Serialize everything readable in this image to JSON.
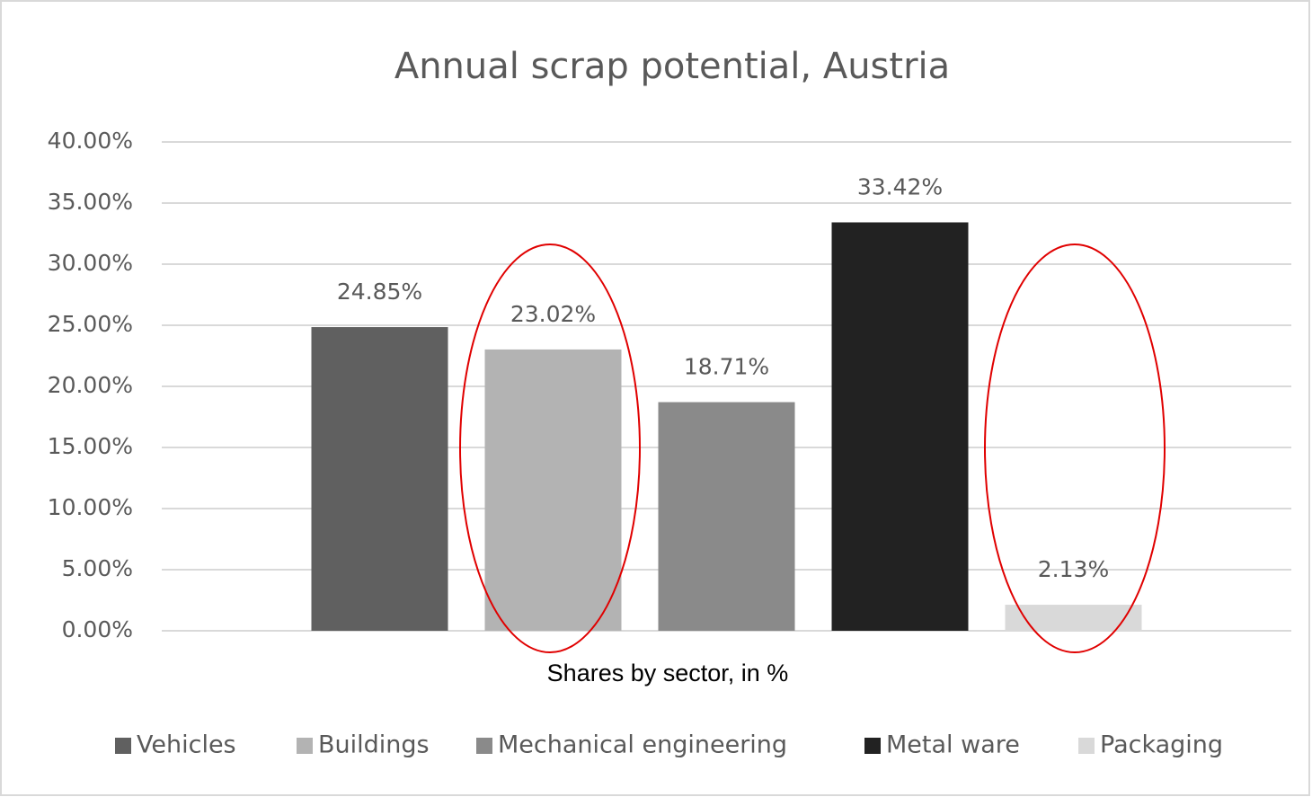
{
  "chart_data": {
    "type": "bar",
    "title": "Annual scrap potential, Austria",
    "x_label": "Shares by sector, in %",
    "series": [
      {
        "name": "Vehicles",
        "color": "#606060",
        "values": [
          24.85
        ],
        "value_labels": [
          "24.85%"
        ]
      },
      {
        "name": "Buildings",
        "color": "#b3b3b3",
        "values": [
          23.02
        ],
        "value_labels": [
          "23.02%"
        ]
      },
      {
        "name": "Mechanical engineering",
        "color": "#8a8a8a",
        "values": [
          18.71
        ],
        "value_labels": [
          "18.71%"
        ]
      },
      {
        "name": "Metal ware",
        "color": "#222222",
        "values": [
          33.42
        ],
        "value_labels": [
          "33.42%"
        ]
      },
      {
        "name": "Packaging",
        "color": "#d9d9d9",
        "values": [
          2.13
        ],
        "value_labels": [
          "2.13%"
        ]
      }
    ],
    "ylim": [
      0,
      40
    ],
    "yticks": [
      {
        "value": 0,
        "label": "0.00%"
      },
      {
        "value": 5,
        "label": "5.00%"
      },
      {
        "value": 10,
        "label": "10.00%"
      },
      {
        "value": 15,
        "label": "15.00%"
      },
      {
        "value": 20,
        "label": "20.00%"
      },
      {
        "value": 25,
        "label": "25.00%"
      },
      {
        "value": 30,
        "label": "30.00%"
      },
      {
        "value": 35,
        "label": "35.00%"
      },
      {
        "value": 40,
        "label": "40.00%"
      }
    ],
    "grid": true,
    "legend": "bottom"
  }
}
